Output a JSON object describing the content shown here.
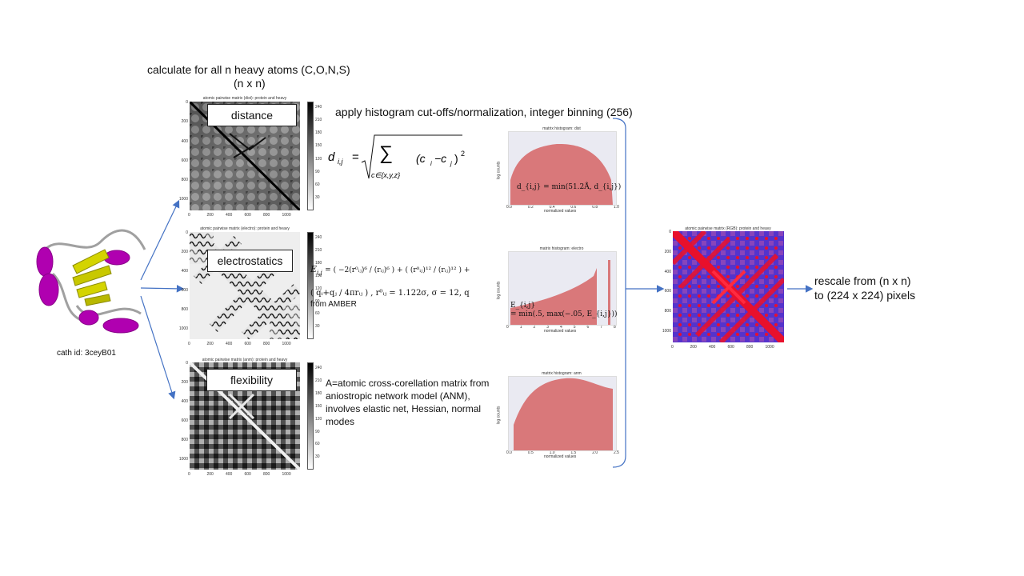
{
  "header": {
    "line1": "calculate for all n heavy atoms (C,O,N,S)",
    "line2": "(n x n)"
  },
  "histogram_note": "apply histogram cut-offs/normalization, integer binning (256)",
  "protein": {
    "caption": "cath id: 3ceyB01"
  },
  "panels": {
    "distance": {
      "label": "distance",
      "title": "atomic pairwise matrix (dist): protein and heavy",
      "formula_lhs": "d",
      "formula_sub": "i,j",
      "formula_sum_index": "c∈{x,y,z}",
      "formula_term": "(c",
      "formula_term_sub1": "i",
      "formula_term_mid": "−c",
      "formula_term_sub2": "j",
      "formula_term_end": ")",
      "formula_term_exp": "2",
      "hist_title": "matrix histogram: dist",
      "hist_label": "d_{i,j} = min(51.2Å, d_{i,j})",
      "hist_ylabel": "log counts",
      "hist_xlabel": "normalized values"
    },
    "electrostatics": {
      "label": "electrostatics",
      "title": "atomic pairwise matrix (electro): protein and heavy",
      "formula_line1_lhs": "E",
      "formula_line1_sub": "i,j",
      "formula_line1_rhs": "= ( −2(r⁰ᵢⱼ)⁶ / (rᵢⱼ)⁶ ) + ( (r⁰ᵢⱼ)¹² / (rᵢⱼ)¹² ) +",
      "formula_line2": "( qᵢ+qⱼ / 4πrᵢⱼ ) , r⁰ᵢⱼ = 1.122σ, σ = 12, q",
      "formula_line3": "from AMBER",
      "hist_title": "matrix histogram: electro",
      "hist_label_line1": "E_{i,j}",
      "hist_label_line2": "= min(.5, max(−.05, E_{i,j}))",
      "hist_ylabel": "log counts",
      "hist_xlabel": "normalized values"
    },
    "flexibility": {
      "label": "flexibility",
      "title": "atomic pairwise matrix (anm): protein and heavy",
      "description": "A=atomic cross-corellation matrix from aniostropic network model (ANM),  involves elastic net, Hessian, normal modes",
      "hist_title": "matrix histogram: anm",
      "hist_ylabel": "log counts",
      "hist_xlabel": "normalized values"
    }
  },
  "rgb": {
    "title": "atomic pairwise matrix (RGB): protein and heavy"
  },
  "rescale": {
    "line1": "rescale from (n x n)",
    "line2": "to (224 x 224) pixels"
  },
  "axis_ticks_y": [
    "0",
    "200",
    "400",
    "600",
    "800",
    "1000"
  ],
  "axis_ticks_x": [
    "0",
    "200",
    "400",
    "600",
    "800",
    "1000"
  ],
  "colorbar_ticks": [
    "240",
    "210",
    "180",
    "150",
    "120",
    "90",
    "60",
    "30"
  ],
  "hist_x_ticks_dist": [
    "0.0",
    "0.2",
    "0.4",
    "0.6",
    "0.8",
    "1.0"
  ],
  "hist_x_ticks_electro": [
    "0",
    "1",
    "2",
    "3",
    "4",
    "5",
    "6",
    "7",
    "8"
  ],
  "hist_x_ticks_anm": [
    "0.0",
    "0.5",
    "1.0",
    "1.5",
    "2.0",
    "2.5"
  ],
  "colors": {
    "arrow": "#4472c4",
    "hist_fill": "#d9787a",
    "hist_bg": "#eaeaf2",
    "helix": "#b000b0",
    "sheet": "#d4d400",
    "loop": "#a0a0a0",
    "rgb_red": "#e8102c",
    "rgb_blue": "#5533cc"
  }
}
